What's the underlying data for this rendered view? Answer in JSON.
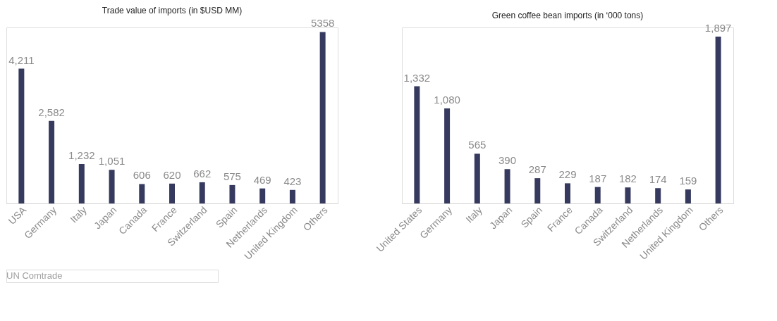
{
  "chart_data": [
    {
      "type": "bar",
      "title": "Trade value of imports (in $USD MM)",
      "categories": [
        "USA",
        "Germany",
        "Italy",
        "Japan",
        "Canada",
        "France",
        "Switzerland",
        "Spain",
        "Netherlands",
        "United Kingdom",
        "Others"
      ],
      "values": [
        4211,
        2582,
        1232,
        1051,
        606,
        620,
        662,
        575,
        469,
        423,
        5358
      ],
      "value_labels": [
        "4,211",
        "2,582",
        "1,232",
        "1,051",
        "606",
        "620",
        "662",
        "575",
        "469",
        "423",
        "5358"
      ],
      "color": "#363a5e",
      "grid": false,
      "tick_labels": "x",
      "annotations": [
        "UN Comtrade"
      ]
    },
    {
      "type": "bar",
      "title": "Green coffee bean imports (in ‘000 tons)",
      "categories": [
        "United States",
        "Germany",
        "Italy",
        "Japan",
        "Spain",
        "France",
        "Canada",
        "Switzerland",
        "Netherlands",
        "United Kingdom",
        "Others"
      ],
      "values": [
        1332,
        1080,
        565,
        390,
        287,
        229,
        187,
        182,
        174,
        159,
        1897
      ],
      "value_labels": [
        "1,332",
        "1,080",
        "565",
        "390",
        "287",
        "229",
        "187",
        "182",
        "174",
        "159",
        "1,897"
      ],
      "color": "#363a5e",
      "grid": false,
      "tick_labels": "x"
    }
  ]
}
